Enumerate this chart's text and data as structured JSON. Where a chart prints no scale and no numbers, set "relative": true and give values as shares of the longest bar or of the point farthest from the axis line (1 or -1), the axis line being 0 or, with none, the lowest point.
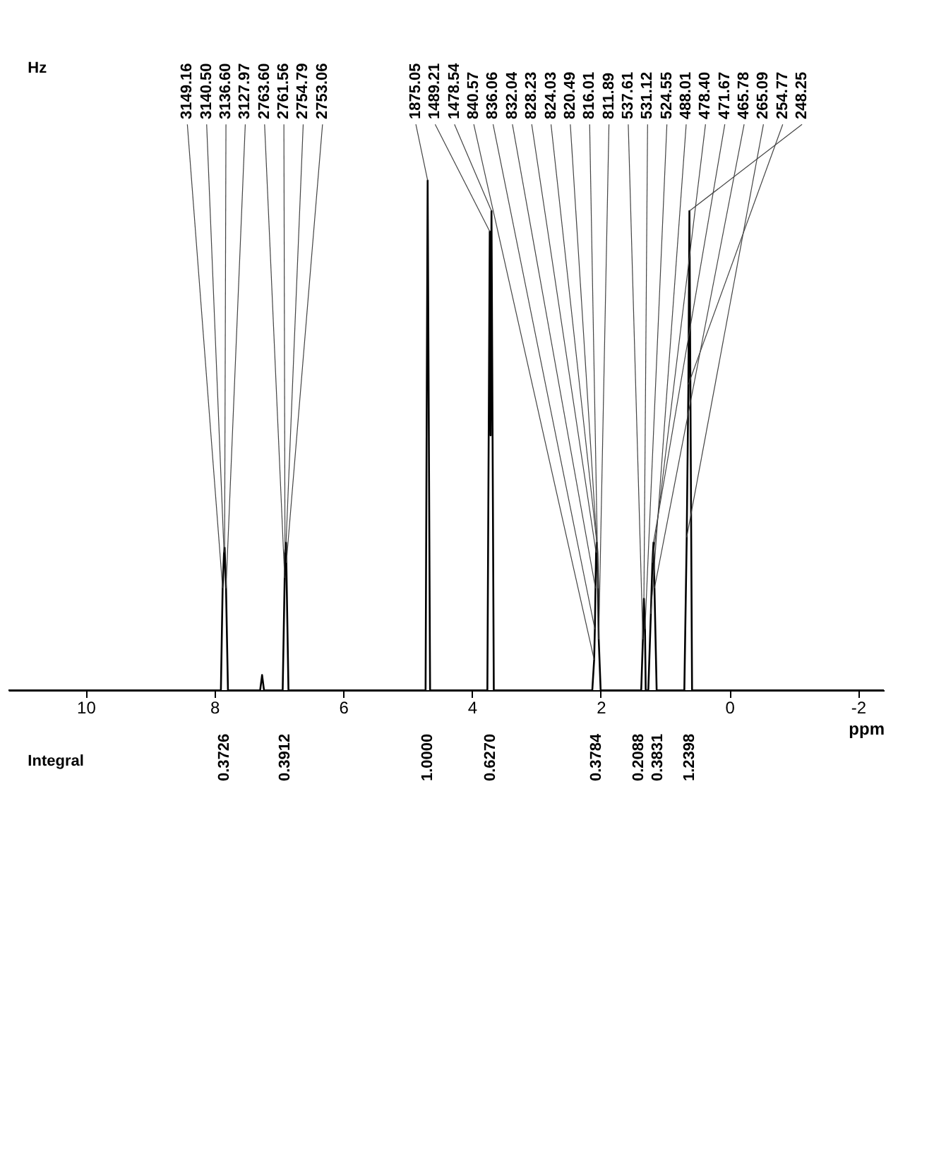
{
  "chart_data": {
    "type": "line",
    "relative": true,
    "color": "#000000",
    "marker": "none",
    "line_style": "solid",
    "grid": false,
    "xlim": [
      11.2,
      -2.4
    ],
    "xticks": [
      -2,
      0,
      2,
      4,
      6,
      8,
      10
    ],
    "xlabel": "ppm",
    "x": [
      -2.4,
      0.58,
      0.621,
      0.637,
      0.663,
      0.7,
      1.13,
      1.164,
      1.179,
      1.196,
      1.22,
      1.26,
      1.3,
      1.311,
      1.328,
      1.344,
      1.37,
      2.0,
      2.03,
      2.04,
      2.051,
      2.06,
      2.071,
      2.08,
      2.09,
      2.101,
      2.13,
      3.66,
      3.696,
      3.71,
      3.723,
      3.76,
      4.65,
      4.688,
      4.72,
      6.85,
      6.883,
      6.887,
      6.904,
      6.909,
      6.94,
      7.23,
      7.26,
      7.29,
      7.79,
      7.82,
      7.842,
      7.851,
      7.873,
      7.9,
      11.2
    ],
    "values": [
      0,
      0,
      0.94,
      0.6,
      0.3,
      0,
      0,
      0.2,
      0.29,
      0.25,
      0.15,
      0,
      0,
      0.12,
      0.18,
      0.1,
      0,
      0,
      0.1,
      0.2,
      0.27,
      0.29,
      0.27,
      0.2,
      0.12,
      0.06,
      0,
      0,
      0.94,
      0.5,
      0.9,
      0,
      0,
      1,
      0,
      0,
      0.25,
      0.29,
      0.27,
      0.22,
      0,
      0,
      0.03,
      0,
      0,
      0.2,
      0.28,
      0.27,
      0.2,
      0,
      0
    ],
    "annotations": [
      {
        "text": "248.25",
        "x": 0.621,
        "y": 0.94
      },
      {
        "text": "254.77",
        "x": 0.637,
        "y": 0.6
      },
      {
        "text": "265.09",
        "x": 0.663,
        "y": 0.3
      },
      {
        "text": "465.78",
        "x": 1.164,
        "y": 0.2
      },
      {
        "text": "471.67",
        "x": 1.179,
        "y": 0.29
      },
      {
        "text": "478.40",
        "x": 1.196,
        "y": 0.25
      },
      {
        "text": "488.01",
        "x": 1.22,
        "y": 0.15
      },
      {
        "text": "524.55",
        "x": 1.311,
        "y": 0.12
      },
      {
        "text": "531.12",
        "x": 1.328,
        "y": 0.18
      },
      {
        "text": "537.61",
        "x": 1.344,
        "y": 0.1
      },
      {
        "text": "811.89",
        "x": 2.03,
        "y": 0.1
      },
      {
        "text": "816.01",
        "x": 2.04,
        "y": 0.2
      },
      {
        "text": "820.49",
        "x": 2.051,
        "y": 0.27
      },
      {
        "text": "824.03",
        "x": 2.06,
        "y": 0.29
      },
      {
        "text": "828.23",
        "x": 2.071,
        "y": 0.27
      },
      {
        "text": "832.04",
        "x": 2.08,
        "y": 0.2
      },
      {
        "text": "836.06",
        "x": 2.09,
        "y": 0.12
      },
      {
        "text": "840.57",
        "x": 2.101,
        "y": 0.06
      },
      {
        "text": "1478.54",
        "x": 3.696,
        "y": 0.94
      },
      {
        "text": "1489.21",
        "x": 3.723,
        "y": 0.9
      },
      {
        "text": "1875.05",
        "x": 4.688,
        "y": 1
      },
      {
        "text": "2753.06",
        "x": 6.883,
        "y": 0.25
      },
      {
        "text": "2754.79",
        "x": 6.887,
        "y": 0.29
      },
      {
        "text": "2761.56",
        "x": 6.904,
        "y": 0.27
      },
      {
        "text": "2763.60",
        "x": 6.909,
        "y": 0.22
      },
      {
        "text": "3127.97",
        "x": 7.82,
        "y": 0.2
      },
      {
        "text": "3136.60",
        "x": 7.842,
        "y": 0.28
      },
      {
        "text": "3140.50",
        "x": 7.851,
        "y": 0.27
      },
      {
        "text": "3149.16",
        "x": 7.873,
        "y": 0.2
      },
      {
        "text": "1.2398",
        "x": 0.62,
        "y": 0
      },
      {
        "text": "0.3831",
        "x": 1.19,
        "y": 0
      },
      {
        "text": "0.2088",
        "x": 1.33,
        "y": 0
      },
      {
        "text": "0.3784",
        "x": 2.06,
        "y": 0
      },
      {
        "text": "0.6270",
        "x": 3.71,
        "y": 0
      },
      {
        "text": "1.0000",
        "x": 4.69,
        "y": 0
      },
      {
        "text": "0.3912",
        "x": 6.9,
        "y": 0
      },
      {
        "text": "0.3726",
        "x": 7.84,
        "y": 0
      },
      "Hz",
      "Integral"
    ]
  }
}
